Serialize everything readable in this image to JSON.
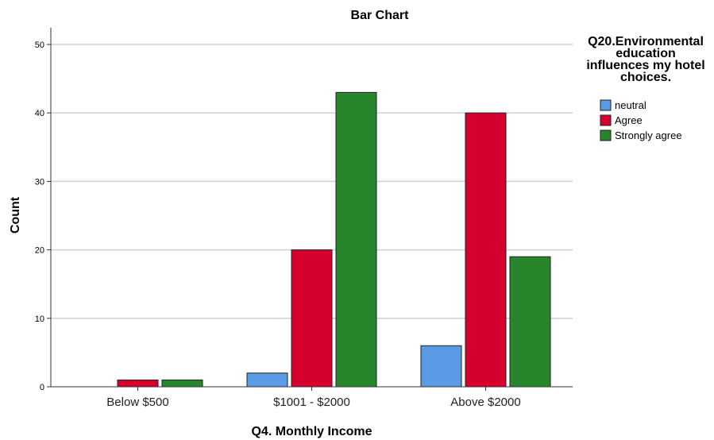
{
  "chart_data": {
    "type": "bar",
    "title": "Bar Chart",
    "xlabel": "Q4. Monthly Income",
    "ylabel": "Count",
    "ylim": [
      0,
      50
    ],
    "yticks": [
      0,
      10,
      20,
      30,
      40,
      50
    ],
    "grid": true,
    "legend_placement": "top-right",
    "legend_title": [
      "Q20.Environmental",
      "education",
      "influences my hotel",
      "choices."
    ],
    "categories": [
      "Below $500",
      "$1001 - $2000",
      "Above $2000"
    ],
    "series": [
      {
        "name": "neutral",
        "color": "#5a9be5",
        "values": [
          0,
          2,
          6
        ]
      },
      {
        "name": "Agree",
        "color": "#d5002d",
        "values": [
          1,
          20,
          40
        ]
      },
      {
        "name": "Strongly agree",
        "color": "#27862c",
        "values": [
          1,
          43,
          19
        ]
      }
    ]
  }
}
